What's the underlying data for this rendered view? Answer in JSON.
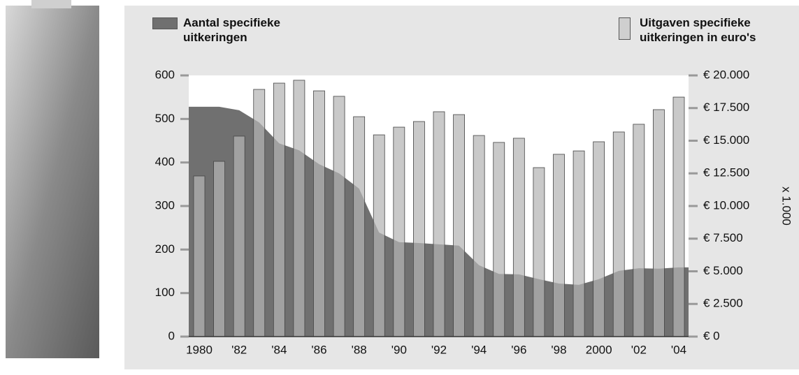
{
  "chart_data": {
    "type": "bar",
    "categories": [
      "1980",
      null,
      "'82",
      null,
      "'84",
      null,
      "'86",
      null,
      "'88",
      null,
      "'90",
      null,
      "'92",
      null,
      "'94",
      null,
      "'96",
      null,
      "'98",
      null,
      "2000",
      null,
      "'02",
      null,
      "'04"
    ],
    "series": [
      {
        "name": "Aantal specifieke uitkeringen",
        "type": "area",
        "color": "#707070",
        "values": [
          528,
          528,
          520,
          492,
          444,
          428,
          396,
          375,
          340,
          239,
          217,
          215,
          212,
          209,
          164,
          144,
          143,
          132,
          122,
          119,
          132,
          151,
          157,
          156,
          159
        ]
      },
      {
        "name": "Uitgaven specifieke uitkeringen in euro's",
        "type": "bar",
        "axis": "y2",
        "color": "#b4b4b4",
        "values": [
          12300,
          13420,
          15350,
          18930,
          19410,
          19630,
          18820,
          18400,
          16840,
          15450,
          16040,
          16470,
          17220,
          17000,
          15400,
          14870,
          15190,
          12940,
          13960,
          14220,
          14920,
          15670,
          16260,
          17380,
          18340
        ]
      }
    ],
    "ylim": [
      0,
      600
    ],
    "yticks": [
      0,
      100,
      200,
      300,
      400,
      500,
      600
    ],
    "y2lim": [
      0,
      20000
    ],
    "y2ticks": [
      {
        "value": 0,
        "label": "€ 0"
      },
      {
        "value": 2500,
        "label": "€ 2.500"
      },
      {
        "value": 5000,
        "label": "€ 5.000"
      },
      {
        "value": 7500,
        "label": "€ 7.500"
      },
      {
        "value": 10000,
        "label": "€ 10.000"
      },
      {
        "value": 12500,
        "label": "€ 12.500"
      },
      {
        "value": 15000,
        "label": "€ 15.000"
      },
      {
        "value": 17500,
        "label": "€ 17.500"
      },
      {
        "value": 20000,
        "label": "€ 20.000"
      }
    ],
    "y2label": "x 1.000"
  }
}
